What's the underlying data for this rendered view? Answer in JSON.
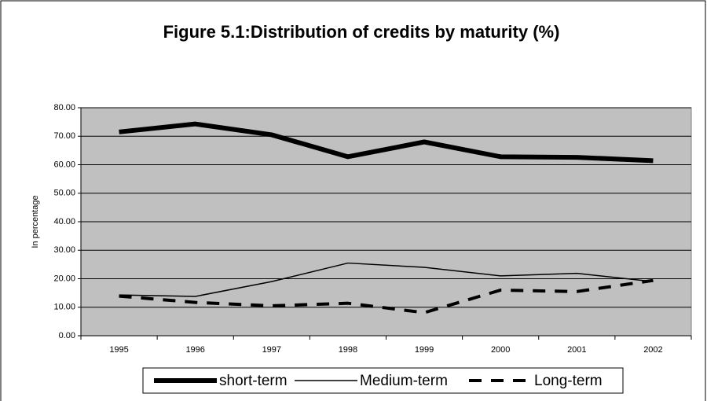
{
  "chart_data": {
    "type": "line",
    "title": "Figure 5.1:Distribution of credits by maturity (%)",
    "y_label": "In percentage",
    "categories": [
      "1995",
      "1996",
      "1997",
      "1998",
      "1999",
      "2000",
      "2001",
      "2002"
    ],
    "series": [
      {
        "name": "short-term",
        "color": "#000000",
        "stroke_width": 6,
        "dash": "solid",
        "values": [
          71.5,
          74.3,
          70.5,
          62.8,
          68.0,
          62.8,
          62.6,
          61.4
        ]
      },
      {
        "name": "Medium-term",
        "color": "#000000",
        "stroke_width": 1.5,
        "dash": "solid",
        "values": [
          14.3,
          13.8,
          19.0,
          25.5,
          24.0,
          21.0,
          21.9,
          19.0
        ]
      },
      {
        "name": "Long-term",
        "color": "#000000",
        "stroke_width": 4,
        "dash": "dashed",
        "values": [
          13.9,
          11.7,
          10.5,
          11.4,
          8.1,
          16.0,
          15.5,
          19.4
        ]
      }
    ],
    "ylim": [
      0,
      80
    ],
    "yticks": [
      {
        "value": 0,
        "label": "0.00"
      },
      {
        "value": 10,
        "label": "10.00"
      },
      {
        "value": 20,
        "label": "20.00"
      },
      {
        "value": 30,
        "label": "30.00"
      },
      {
        "value": 40,
        "label": "40.00"
      },
      {
        "value": 50,
        "label": "50.00"
      },
      {
        "value": 60,
        "label": "60.00"
      },
      {
        "value": 70,
        "label": "70.00"
      },
      {
        "value": 80,
        "label": "80.00"
      }
    ],
    "grid": true,
    "plot_background": "#c0c0c0",
    "legend": "bottom"
  }
}
